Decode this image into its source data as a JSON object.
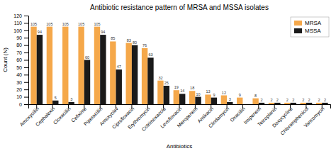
{
  "chart_data": {
    "type": "bar",
    "title": "Antibiotic resistance pattern of MRSA and MSSA isolates",
    "x_label": "Antibiotics",
    "y_label": "Count (N)",
    "categories": [
      "Amoxycillin",
      "Cephalexin",
      "Cloxacillin",
      "Cefixime",
      "Piperacillin",
      "Amoxyclav",
      "Ciprofloxacin",
      "Erythromycin",
      "Cotrimoxazole",
      "Levofloxacin",
      "Meropenem",
      "Amikacin",
      "Clindamycin",
      "Oxacillin",
      "Imipenem",
      "Teicoplanin",
      "Doxycycline",
      "Chloramphenicol",
      "Vancomycin"
    ],
    "series": [
      {
        "name": "MRSA",
        "color": "#F5A84A",
        "values": [
          105,
          105,
          105,
          105,
          105,
          85,
          83,
          76,
          32,
          19,
          18,
          13,
          12,
          9,
          8,
          2,
          2,
          2,
          2
        ]
      },
      {
        "name": "MSSA",
        "color": "#1a1a1a",
        "values": [
          94,
          5,
          3,
          60,
          94,
          47,
          80,
          63,
          25,
          14,
          10,
          9,
          3,
          0,
          2,
          2,
          2,
          2,
          2
        ],
        "value_labels": [
          "94",
          "5",
          "3",
          "60",
          "94",
          "47",
          "80",
          "63",
          "25",
          "14",
          "10",
          "9",
          "3",
          null,
          "2",
          "2",
          "2",
          "2",
          "2"
        ]
      }
    ],
    "ylim": [
      0,
      120
    ],
    "yticks": [
      0,
      10,
      20,
      30,
      40,
      50,
      60,
      70,
      80,
      90,
      100,
      110,
      120
    ],
    "grid": false,
    "legend": "upper right",
    "data_labels": true
  }
}
